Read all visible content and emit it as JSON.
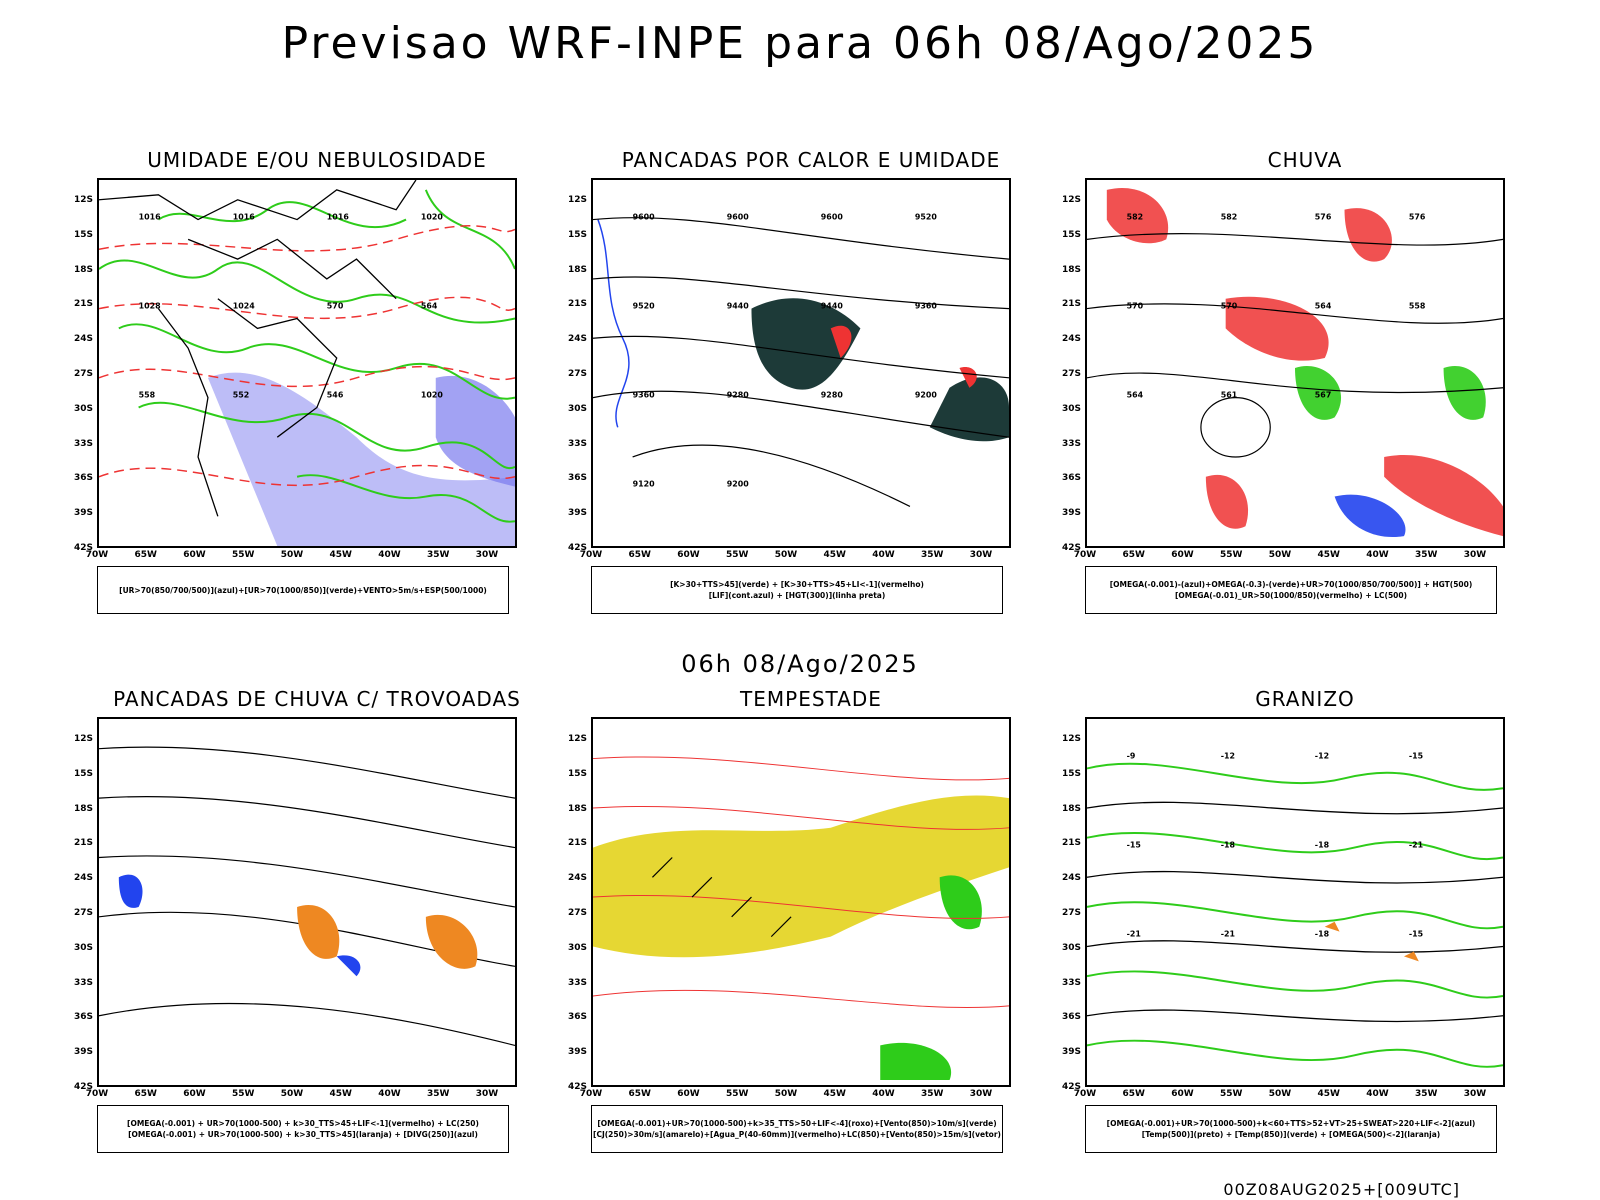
{
  "header": {
    "title": "Previsao WRF-INPE  para 06h 08/Ago/2025",
    "subtitle": "06h 08/Ago/2025",
    "footer": "00Z08AUG2025+[009UTC]"
  },
  "axes": {
    "lat": [
      "12S",
      "15S",
      "18S",
      "21S",
      "24S",
      "27S",
      "30S",
      "33S",
      "36S",
      "39S",
      "42S"
    ],
    "lon": [
      "70W",
      "65W",
      "60W",
      "55W",
      "50W",
      "45W",
      "40W",
      "35W",
      "30W"
    ]
  },
  "panels": [
    {
      "title": "UMIDADE E/OU NEBULOSIDADE",
      "legend1": "[UR>70(850/700/500)](azul)+[UR>70(1000/850)](verde)+VENTO>5m/s+ESP(500/1000)",
      "legend2": "",
      "labels": [
        "1016",
        "1016",
        "1016",
        "1020",
        "1028",
        "1024",
        "570",
        "564",
        "558",
        "552",
        "546",
        "1020"
      ]
    },
    {
      "title": "PANCADAS POR CALOR E UMIDADE",
      "legend1": "[K>30+TTS>45](verde) + [K>30+TTS>45+LI<-1](vermelho)",
      "legend2": "[LIF](cont.azul) + [HGT(300)](linha preta)",
      "labels": [
        "9600",
        "9600",
        "9600",
        "9520",
        "9520",
        "9440",
        "9440",
        "9360",
        "9360",
        "9280",
        "9280",
        "9200",
        "9120",
        "9200"
      ]
    },
    {
      "title": "CHUVA",
      "legend1": "[OMEGA(-0.001)-(azul)+OMEGA(-0.3)-(verde)+UR>70(1000/850/700/500)] + HGT(500)",
      "legend2": "[OMEGA(-0.01)_UR>50(1000/850)(vermelho) + LC(500)",
      "labels": [
        "582",
        "582",
        "576",
        "576",
        "570",
        "570",
        "564",
        "558",
        "564",
        "561",
        "567"
      ]
    },
    {
      "title": "PANCADAS DE CHUVA C/ TROVOADAS",
      "legend1": "[OMEGA(-0.001) + UR>70(1000-500) + k>30_TTS>45+LIF<-1](vermelho) + LC(250)",
      "legend2": "[OMEGA(-0.001) + UR>70(1000-500) + k>30_TTS>45](laranja) + [DIVG(250)](azul)",
      "labels": []
    },
    {
      "title": "TEMPESTADE",
      "legend1": "[OMEGA(-0.001)+UR>70(1000-500)+k>35_TTS>50+LIF<-4](roxo)+[Vento(850)>10m/s](verde)",
      "legend2": "[CJ(250)>30m/s](amarelo)+[Agua_P(40-60mm)](vermelho)+LC(850)+[Vento(850)>15m/s](vetor)",
      "labels": []
    },
    {
      "title": "GRANIZO",
      "legend1": "[OMEGA(-0.001)+UR>70(1000-500)+k<60+TTS>52+VT>25+SWEAT>220+LIF<-2](azul)",
      "legend2": "[Temp(500)](preto) + [Temp(850)](verde) + [OMEGA(500)<-2](laranja)",
      "labels": [
        "-9",
        "-12",
        "-12",
        "-15",
        "-15",
        "-18",
        "-18",
        "-21",
        "-21",
        "-21",
        "-18",
        "-15"
      ]
    }
  ],
  "colors": {
    "green": "#2ecc1a",
    "red": "#ee3333",
    "blue": "#2244ee",
    "lightblue": "#8c8cf0",
    "darkteal": "#1d3a38",
    "yellow": "#e6d733",
    "orange": "#ee8822"
  }
}
